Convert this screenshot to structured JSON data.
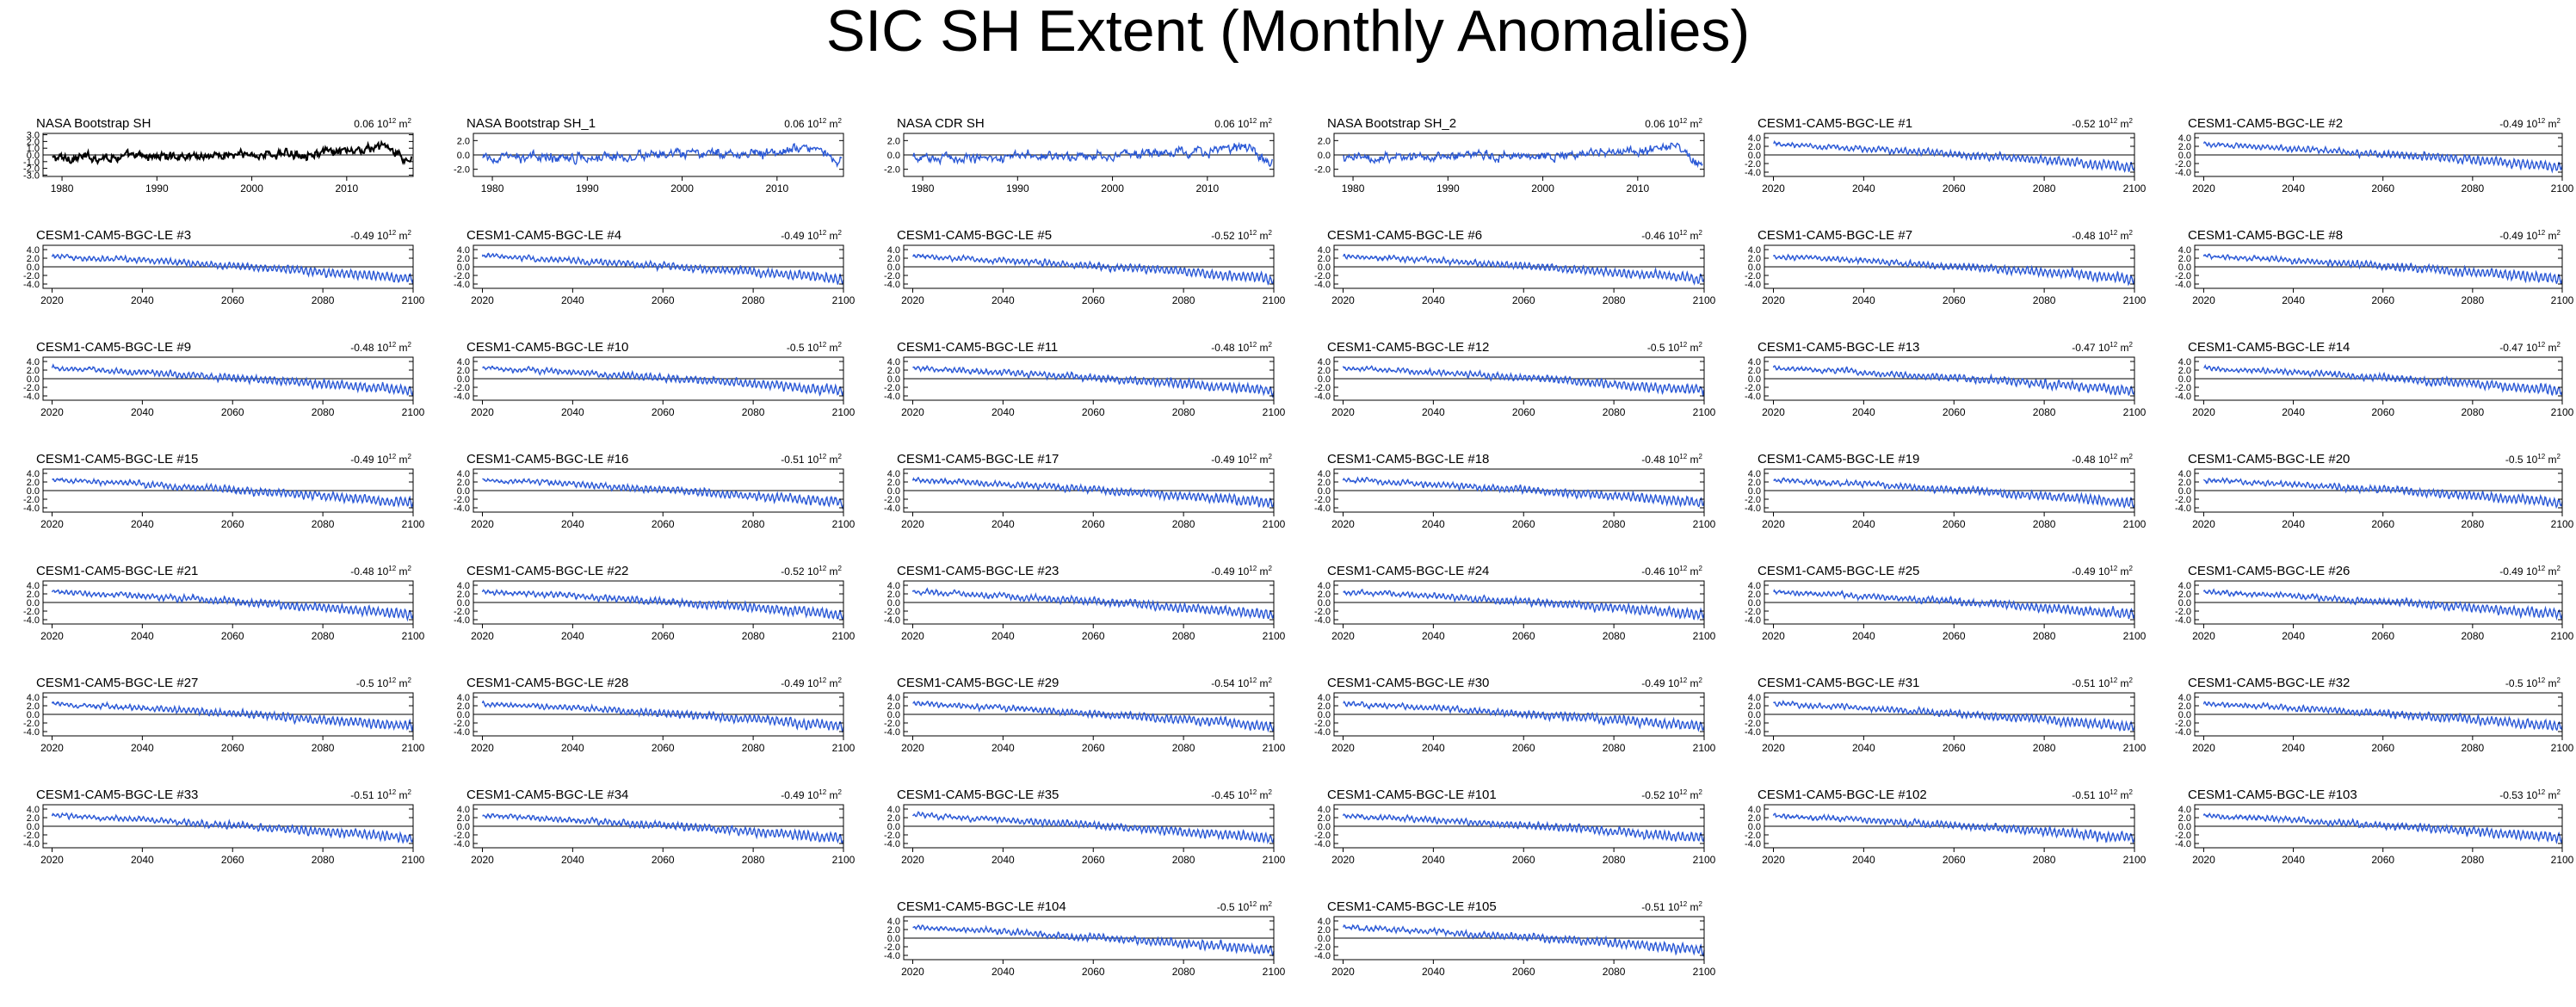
{
  "title": "SIC SH Extent (Monthly Anomalies)",
  "units": {
    "base": "10",
    "exp": "12",
    "suffix": "m",
    "suffix_exp": "2"
  },
  "colors": {
    "obs": "#000000",
    "model": "#2b59d6",
    "zero_line": "#000000",
    "axis": "#000000"
  },
  "obs_xticks": [
    "1980",
    "1990",
    "2000",
    "2010"
  ],
  "model_xticks": [
    "2020",
    "2040",
    "2060",
    "2080",
    "2100"
  ],
  "yticks_obs_first": [
    "3.0",
    "2.0",
    "1.0",
    "0.0",
    "-1.0",
    "-2.0",
    "-3.0"
  ],
  "yticks_obs": [
    "2.0",
    "0.0",
    "-2.0"
  ],
  "yticks_model": [
    "4.0",
    "2.0",
    "0.0",
    "-2.0",
    "-4.0"
  ],
  "panels": [
    {
      "name": "NASA Bootstrap SH",
      "value": "0.06"
    },
    {
      "name": "NASA Bootstrap SH_1",
      "value": "0.06"
    },
    {
      "name": "NASA CDR SH",
      "value": "0.06"
    },
    {
      "name": "NASA Bootstrap SH_2",
      "value": "0.06"
    },
    {
      "name": "CESM1-CAM5-BGC-LE #1",
      "value": "-0.52"
    },
    {
      "name": "CESM1-CAM5-BGC-LE #2",
      "value": "-0.49"
    },
    {
      "name": "CESM1-CAM5-BGC-LE #3",
      "value": "-0.49"
    },
    {
      "name": "CESM1-CAM5-BGC-LE #4",
      "value": "-0.49"
    },
    {
      "name": "CESM1-CAM5-BGC-LE #5",
      "value": "-0.52"
    },
    {
      "name": "CESM1-CAM5-BGC-LE #6",
      "value": "-0.46"
    },
    {
      "name": "CESM1-CAM5-BGC-LE #7",
      "value": "-0.48"
    },
    {
      "name": "CESM1-CAM5-BGC-LE #8",
      "value": "-0.49"
    },
    {
      "name": "CESM1-CAM5-BGC-LE #9",
      "value": "-0.48"
    },
    {
      "name": "CESM1-CAM5-BGC-LE #10",
      "value": "-0.5"
    },
    {
      "name": "CESM1-CAM5-BGC-LE #11",
      "value": "-0.48"
    },
    {
      "name": "CESM1-CAM5-BGC-LE #12",
      "value": "-0.5"
    },
    {
      "name": "CESM1-CAM5-BGC-LE #13",
      "value": "-0.47"
    },
    {
      "name": "CESM1-CAM5-BGC-LE #14",
      "value": "-0.47"
    },
    {
      "name": "CESM1-CAM5-BGC-LE #15",
      "value": "-0.49"
    },
    {
      "name": "CESM1-CAM5-BGC-LE #16",
      "value": "-0.51"
    },
    {
      "name": "CESM1-CAM5-BGC-LE #17",
      "value": "-0.49"
    },
    {
      "name": "CESM1-CAM5-BGC-LE #18",
      "value": "-0.48"
    },
    {
      "name": "CESM1-CAM5-BGC-LE #19",
      "value": "-0.48"
    },
    {
      "name": "CESM1-CAM5-BGC-LE #20",
      "value": "-0.5"
    },
    {
      "name": "CESM1-CAM5-BGC-LE #21",
      "value": "-0.48"
    },
    {
      "name": "CESM1-CAM5-BGC-LE #22",
      "value": "-0.52"
    },
    {
      "name": "CESM1-CAM5-BGC-LE #23",
      "value": "-0.49"
    },
    {
      "name": "CESM1-CAM5-BGC-LE #24",
      "value": "-0.46"
    },
    {
      "name": "CESM1-CAM5-BGC-LE #25",
      "value": "-0.49"
    },
    {
      "name": "CESM1-CAM5-BGC-LE #26",
      "value": "-0.49"
    },
    {
      "name": "CESM1-CAM5-BGC-LE #27",
      "value": "-0.5"
    },
    {
      "name": "CESM1-CAM5-BGC-LE #28",
      "value": "-0.49"
    },
    {
      "name": "CESM1-CAM5-BGC-LE #29",
      "value": "-0.54"
    },
    {
      "name": "CESM1-CAM5-BGC-LE #30",
      "value": "-0.49"
    },
    {
      "name": "CESM1-CAM5-BGC-LE #31",
      "value": "-0.51"
    },
    {
      "name": "CESM1-CAM5-BGC-LE #32",
      "value": "-0.5"
    },
    {
      "name": "CESM1-CAM5-BGC-LE #33",
      "value": "-0.51"
    },
    {
      "name": "CESM1-CAM5-BGC-LE #34",
      "value": "-0.49"
    },
    {
      "name": "CESM1-CAM5-BGC-LE #35",
      "value": "-0.45"
    },
    {
      "name": "CESM1-CAM5-BGC-LE #101",
      "value": "-0.52"
    },
    {
      "name": "CESM1-CAM5-BGC-LE #102",
      "value": "-0.51"
    },
    {
      "name": "CESM1-CAM5-BGC-LE #103",
      "value": "-0.53"
    },
    {
      "name": "CESM1-CAM5-BGC-LE #104",
      "value": "-0.5"
    },
    {
      "name": "CESM1-CAM5-BGC-LE #105",
      "value": "-0.51"
    }
  ],
  "chart_data": {
    "type": "line",
    "title": "SIC SH Extent (Monthly Anomalies)",
    "observations": {
      "panels": [
        "NASA Bootstrap SH",
        "NASA Bootstrap SH_1",
        "NASA CDR SH",
        "NASA Bootstrap SH_2"
      ],
      "xlim": [
        1978,
        2017
      ],
      "ylim": [
        -3.0,
        3.0
      ],
      "trend_per_decade": 0.06,
      "trend_units": "10^12 m^2",
      "anomaly_profile": {
        "x": [
          1979,
          1985,
          1990,
          1995,
          2000,
          2005,
          2010,
          2013,
          2014,
          2016
        ],
        "y": [
          -0.5,
          -0.3,
          -0.2,
          -0.1,
          0.0,
          0.2,
          0.4,
          1.0,
          1.5,
          -0.8
        ]
      }
    },
    "ensemble": {
      "xlim": [
        2018,
        2100
      ],
      "ylim": [
        -5.0,
        5.0
      ],
      "trend_units": "10^12 m^2",
      "mean_anomaly_profile": {
        "x": [
          2020,
          2030,
          2040,
          2050,
          2060,
          2070,
          2080,
          2090,
          2100
        ],
        "y": [
          2.5,
          2.0,
          1.5,
          0.8,
          0.2,
          -0.5,
          -1.2,
          -2.0,
          -2.8
        ]
      },
      "seasonal_spread_growth": {
        "x": [
          2020,
          2100
        ],
        "y": [
          0.7,
          2.2
        ]
      },
      "members": [
        {
          "name": "CESM1-CAM5-BGC-LE #1",
          "trend": -0.52
        },
        {
          "name": "CESM1-CAM5-BGC-LE #2",
          "trend": -0.49
        },
        {
          "name": "CESM1-CAM5-BGC-LE #3",
          "trend": -0.49
        },
        {
          "name": "CESM1-CAM5-BGC-LE #4",
          "trend": -0.49
        },
        {
          "name": "CESM1-CAM5-BGC-LE #5",
          "trend": -0.52
        },
        {
          "name": "CESM1-CAM5-BGC-LE #6",
          "trend": -0.46
        },
        {
          "name": "CESM1-CAM5-BGC-LE #7",
          "trend": -0.48
        },
        {
          "name": "CESM1-CAM5-BGC-LE #8",
          "trend": -0.49
        },
        {
          "name": "CESM1-CAM5-BGC-LE #9",
          "trend": -0.48
        },
        {
          "name": "CESM1-CAM5-BGC-LE #10",
          "trend": -0.5
        },
        {
          "name": "CESM1-CAM5-BGC-LE #11",
          "trend": -0.48
        },
        {
          "name": "CESM1-CAM5-BGC-LE #12",
          "trend": -0.5
        },
        {
          "name": "CESM1-CAM5-BGC-LE #13",
          "trend": -0.47
        },
        {
          "name": "CESM1-CAM5-BGC-LE #14",
          "trend": -0.47
        },
        {
          "name": "CESM1-CAM5-BGC-LE #15",
          "trend": -0.49
        },
        {
          "name": "CESM1-CAM5-BGC-LE #16",
          "trend": -0.51
        },
        {
          "name": "CESM1-CAM5-BGC-LE #17",
          "trend": -0.49
        },
        {
          "name": "CESM1-CAM5-BGC-LE #18",
          "trend": -0.48
        },
        {
          "name": "CESM1-CAM5-BGC-LE #19",
          "trend": -0.48
        },
        {
          "name": "CESM1-CAM5-BGC-LE #20",
          "trend": -0.5
        },
        {
          "name": "CESM1-CAM5-BGC-LE #21",
          "trend": -0.48
        },
        {
          "name": "CESM1-CAM5-BGC-LE #22",
          "trend": -0.52
        },
        {
          "name": "CESM1-CAM5-BGC-LE #23",
          "trend": -0.49
        },
        {
          "name": "CESM1-CAM5-BGC-LE #24",
          "trend": -0.46
        },
        {
          "name": "CESM1-CAM5-BGC-LE #25",
          "trend": -0.49
        },
        {
          "name": "CESM1-CAM5-BGC-LE #26",
          "trend": -0.49
        },
        {
          "name": "CESM1-CAM5-BGC-LE #27",
          "trend": -0.5
        },
        {
          "name": "CESM1-CAM5-BGC-LE #28",
          "trend": -0.49
        },
        {
          "name": "CESM1-CAM5-BGC-LE #29",
          "trend": -0.54
        },
        {
          "name": "CESM1-CAM5-BGC-LE #30",
          "trend": -0.49
        },
        {
          "name": "CESM1-CAM5-BGC-LE #31",
          "trend": -0.51
        },
        {
          "name": "CESM1-CAM5-BGC-LE #32",
          "trend": -0.5
        },
        {
          "name": "CESM1-CAM5-BGC-LE #33",
          "trend": -0.51
        },
        {
          "name": "CESM1-CAM5-BGC-LE #34",
          "trend": -0.49
        },
        {
          "name": "CESM1-CAM5-BGC-LE #35",
          "trend": -0.45
        },
        {
          "name": "CESM1-CAM5-BGC-LE #101",
          "trend": -0.52
        },
        {
          "name": "CESM1-CAM5-BGC-LE #102",
          "trend": -0.51
        },
        {
          "name": "CESM1-CAM5-BGC-LE #103",
          "trend": -0.53
        },
        {
          "name": "CESM1-CAM5-BGC-LE #104",
          "trend": -0.5
        },
        {
          "name": "CESM1-CAM5-BGC-LE #105",
          "trend": -0.51
        }
      ]
    }
  }
}
